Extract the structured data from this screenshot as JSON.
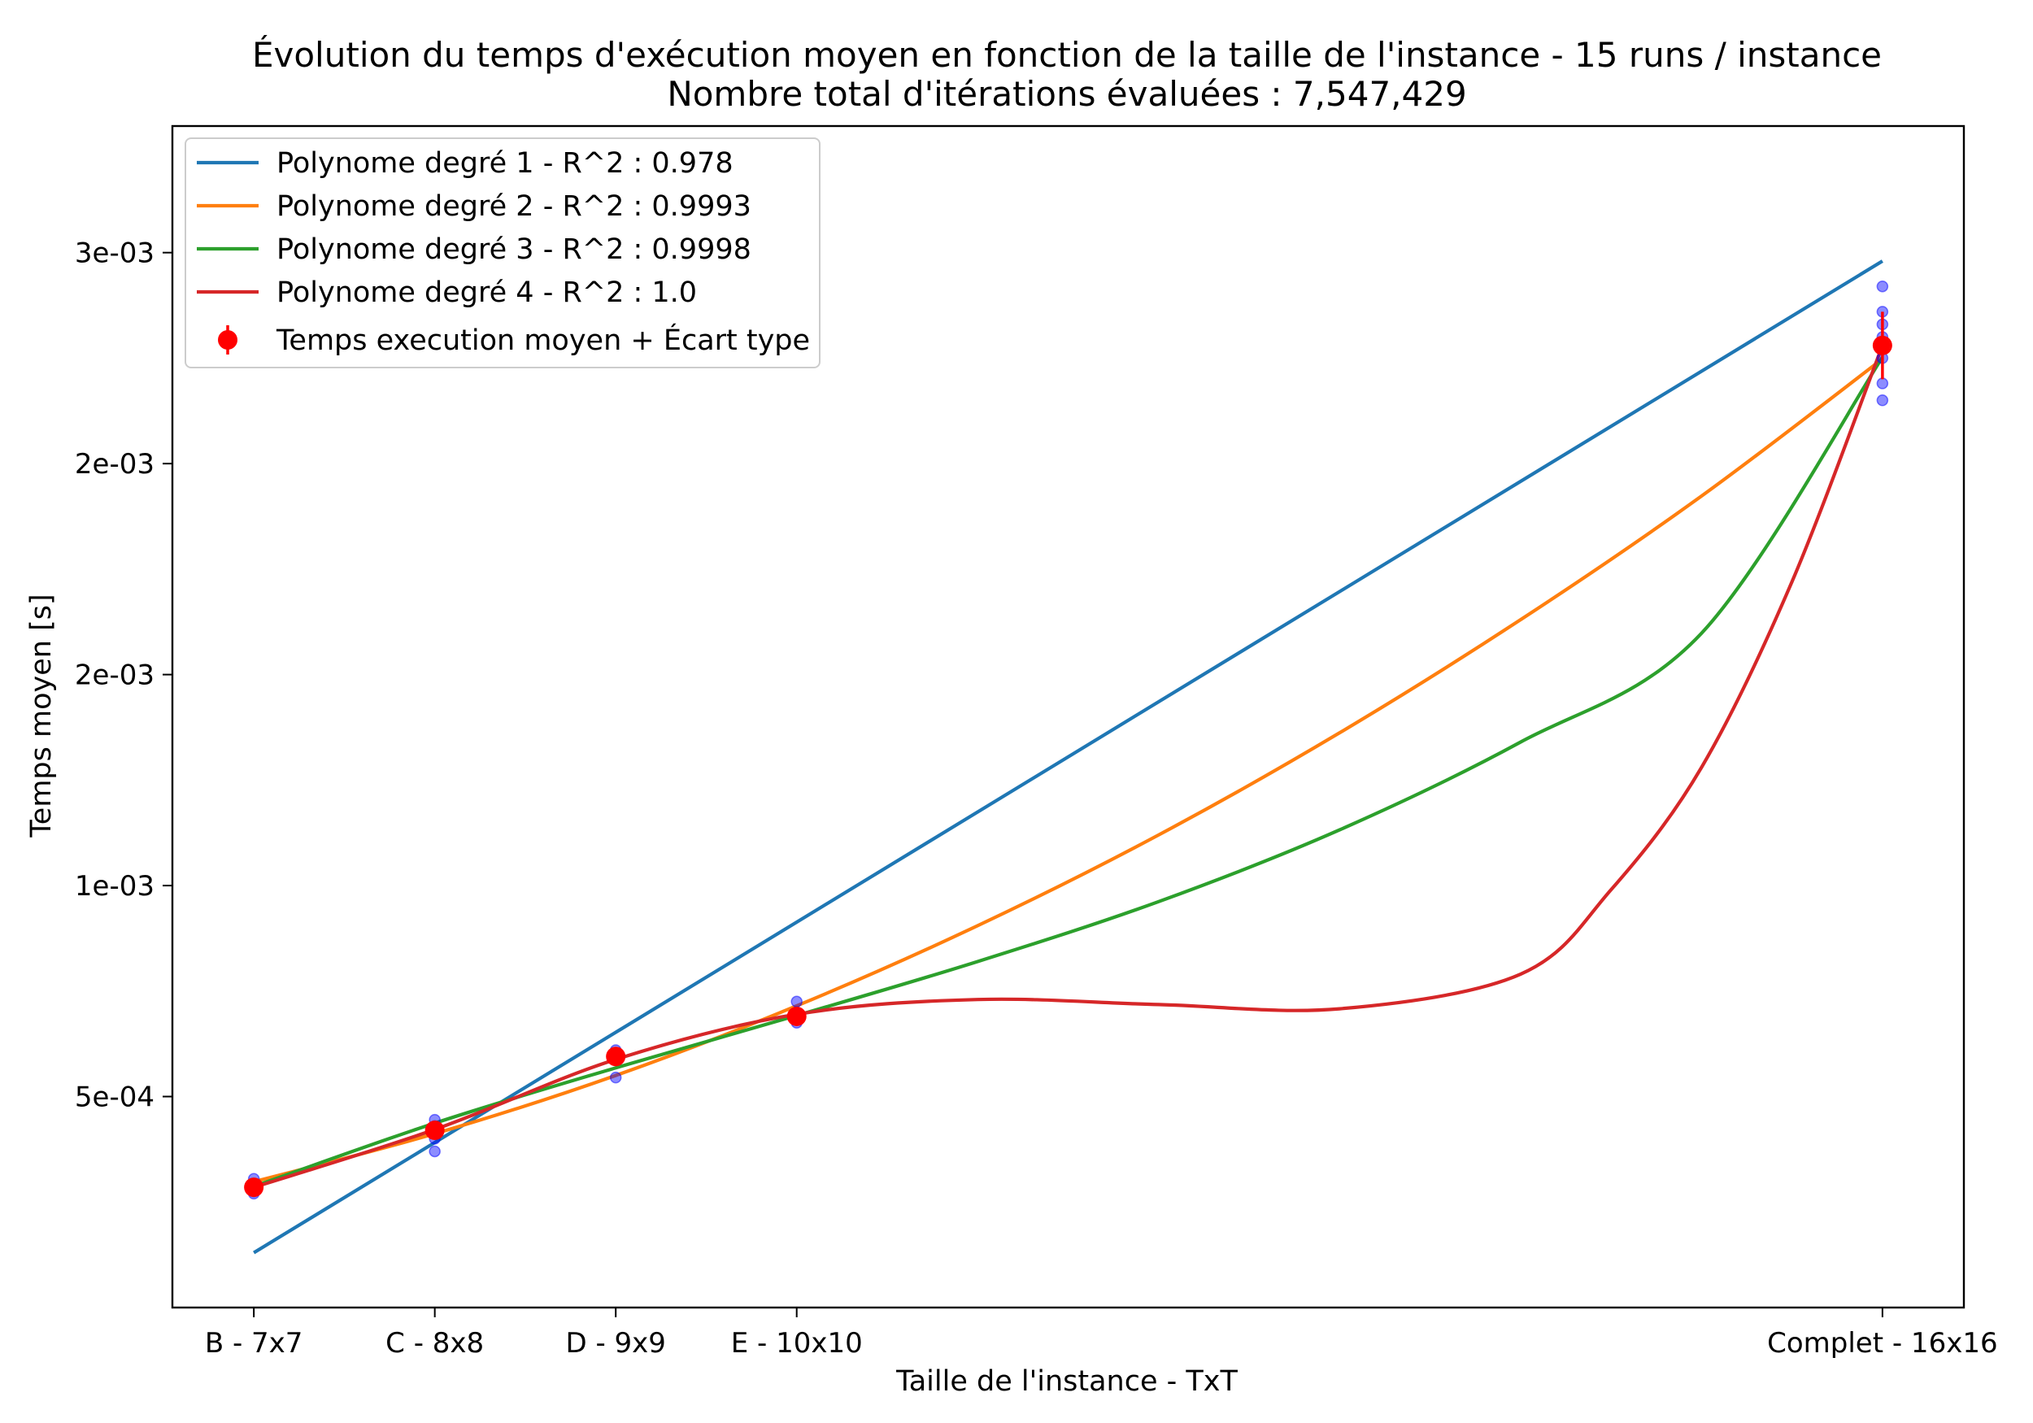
{
  "chart_data": {
    "type": "line",
    "title": "Évolution du temps d'exécution moyen en fonction de la taille de l'instance - 15 runs / instance",
    "subtitle": "Nombre total d'itérations évaluées : 7,547,429",
    "xlabel": "Taille de l'instance - TxT",
    "ylabel": "Temps moyen [s]",
    "x_ticks": [
      {
        "value": 7,
        "label": "B - 7x7"
      },
      {
        "value": 8,
        "label": "C - 8x8"
      },
      {
        "value": 9,
        "label": "D - 9x9"
      },
      {
        "value": 10,
        "label": "E - 10x10"
      },
      {
        "value": 16,
        "label": "Complet - 16x16"
      }
    ],
    "y_ticks": [
      {
        "value": 0.0005,
        "label": "5e-04"
      },
      {
        "value": 0.001,
        "label": "1e-03"
      },
      {
        "value": 0.0015,
        "label": "2e-03"
      },
      {
        "value": 0.002,
        "label": "2e-03"
      },
      {
        "value": 0.0025,
        "label": "3e-03"
      }
    ],
    "xlim": [
      6.55,
      16.45
    ],
    "ylim": [
      0.0,
      0.0028
    ],
    "grid": false,
    "legend_position": "top-left",
    "fit_curves": [
      {
        "name": "Polynome degré 1 - R^2 : 0.978",
        "color": "#1f77b4",
        "degree": 1,
        "x": [
          7,
          16
        ],
        "y": [
          0.00013,
          0.00248
        ]
      },
      {
        "name": "Polynome degré 2 - R^2 : 0.9993",
        "color": "#ff7f0e",
        "degree": 2,
        "x": [
          7,
          8,
          9,
          10,
          11,
          12,
          13,
          14,
          15,
          16
        ],
        "y": [
          0.000298,
          0.000412,
          0.00055,
          0.000715,
          0.000905,
          0.00112,
          0.001362,
          0.00163,
          0.001923,
          0.002248
        ]
      },
      {
        "name": "Polynome degré 3 - R^2 : 0.9998",
        "color": "#2ca02c",
        "degree": 3,
        "x": [
          7,
          8,
          9,
          10,
          11,
          12,
          13,
          14,
          15,
          16
        ],
        "y": [
          0.000287,
          0.000437,
          0.000568,
          0.000692,
          0.00082,
          0.000962,
          0.001132,
          0.00134,
          0.001598,
          0.002252
        ]
      },
      {
        "name": "Polynome degré 4 - R^2 : 1.0",
        "color": "#d62728",
        "degree": 4,
        "x": [
          7,
          8,
          9,
          10,
          11,
          12,
          13,
          14,
          14.5,
          15,
          15.5,
          16
        ],
        "y": [
          0.000285,
          0.000422,
          0.000588,
          0.000695,
          0.00073,
          0.000718,
          0.000708,
          0.00079,
          0.00099,
          0.00128,
          0.00172,
          0.00228
        ]
      }
    ],
    "mean_points": {
      "name": "Temps execution moyen + Écart type",
      "color": "#ff0000",
      "x": [
        7,
        8,
        9,
        10,
        16
      ],
      "y": [
        0.000285,
        0.00042,
        0.000595,
        0.00069,
        0.00228
      ],
      "std": [
        1.2e-05,
        2.2e-05,
        2e-05,
        1.8e-05,
        8e-05
      ]
    },
    "runs": {
      "color": "#0000ff",
      "x": [
        7,
        7,
        7,
        7,
        8,
        8,
        8,
        8,
        9,
        9,
        9,
        10,
        10,
        10,
        10,
        16,
        16,
        16,
        16,
        16,
        16,
        16,
        16
      ],
      "y": [
        0.00027,
        0.000275,
        0.00029,
        0.000305,
        0.00037,
        0.0004,
        0.00043,
        0.000445,
        0.000545,
        0.0006,
        0.00061,
        0.000675,
        0.000685,
        0.0007,
        0.000725,
        0.00215,
        0.00219,
        0.00225,
        0.00228,
        0.0023,
        0.00233,
        0.00236,
        0.00242
      ]
    }
  }
}
